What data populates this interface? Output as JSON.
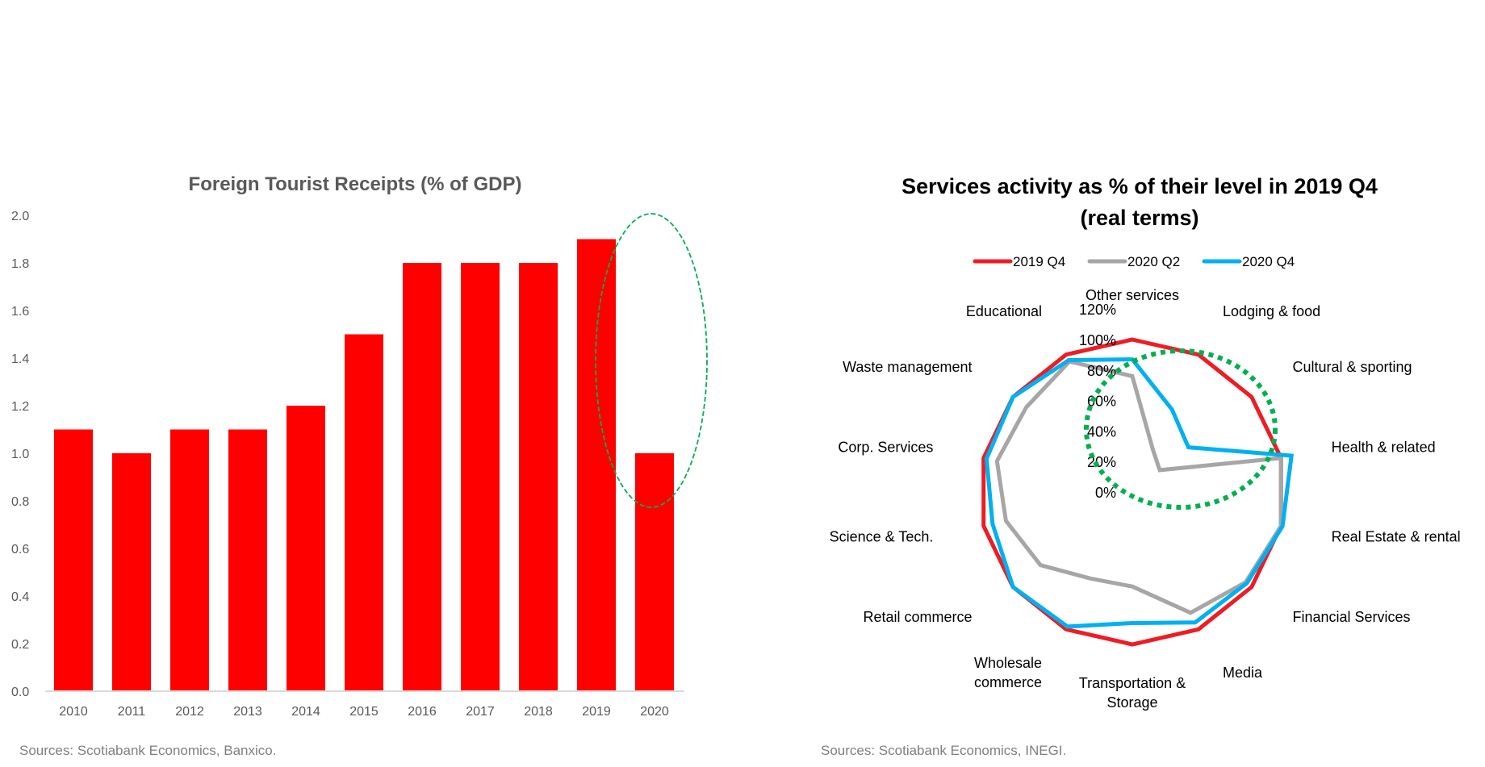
{
  "chart_data": [
    {
      "type": "bar",
      "title": "Foreign Tourist Receipts (% of GDP)",
      "xlabel": "",
      "ylabel": "",
      "categories": [
        "2010",
        "2011",
        "2012",
        "2013",
        "2014",
        "2015",
        "2016",
        "2017",
        "2018",
        "2019",
        "2020"
      ],
      "values": [
        1.1,
        1.0,
        1.1,
        1.1,
        1.2,
        1.5,
        1.8,
        1.8,
        1.8,
        1.9,
        1.0
      ],
      "ylim": [
        0,
        2.0
      ],
      "yticks": [
        "0.0",
        "0.2",
        "0.4",
        "0.6",
        "0.8",
        "1.0",
        "1.2",
        "1.4",
        "1.6",
        "1.8",
        "2.0"
      ],
      "grid": false,
      "bar_color": "#ff0000",
      "annotation": {
        "shape": "dashed ellipse",
        "highlights": [
          "2020"
        ],
        "color": "#00b050"
      },
      "source": "Sources: Scotiabank Economics, Banxico."
    },
    {
      "type": "radar",
      "title_line1": "Services activity as % of their level in 2019 Q4",
      "title_line2": "(real terms)",
      "categories": [
        [
          "Other services"
        ],
        [
          "Lodging & food"
        ],
        [
          "Cultural & sporting"
        ],
        [
          "Health & related"
        ],
        [
          "Real Estate & rental"
        ],
        [
          "Financial Services"
        ],
        [
          "Media"
        ],
        [
          "Transportation &",
          "Storage"
        ],
        [
          "Wholesale",
          "commerce"
        ],
        [
          "Retail commerce"
        ],
        [
          "Science & Tech."
        ],
        [
          "Corp. Services"
        ],
        [
          "Waste management"
        ],
        [
          "Educational"
        ]
      ],
      "rlim": [
        0,
        120
      ],
      "rticks": [
        "0%",
        "20%",
        "40%",
        "60%",
        "80%",
        "100%",
        "120%"
      ],
      "legend_position": "top",
      "series": [
        {
          "name": "2019 Q4",
          "color": "#ee1c25",
          "values": [
            100,
            100,
            100,
            100,
            100,
            100,
            100,
            100,
            100,
            100,
            100,
            100,
            100,
            100
          ]
        },
        {
          "name": "2020 Q2",
          "color": "#a6a6a6",
          "values": [
            76,
            31,
            23,
            100,
            100,
            95,
            88,
            62,
            63,
            77,
            85,
            91,
            89,
            95
          ]
        },
        {
          "name": "2020 Q4",
          "color": "#00b0f0",
          "values": [
            87,
            60,
            47,
            107,
            101,
            96,
            95,
            86,
            98,
            100,
            94,
            98,
            100,
            96
          ]
        }
      ],
      "annotation": {
        "shape": "dotted circle",
        "color": "#00b050"
      },
      "source": "Sources: Scotiabank Economics, INEGI."
    }
  ]
}
